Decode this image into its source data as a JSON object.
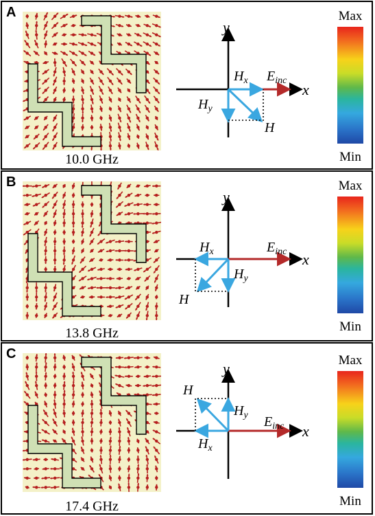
{
  "panels": [
    {
      "letter": "A",
      "frequency": "10.0 GHz",
      "colorbar": {
        "max": "Max",
        "min": "Min"
      },
      "axes": {
        "x": "x",
        "y": "y"
      },
      "vectors": {
        "Hx": "H",
        "Hx_sub": "x",
        "Hy": "H",
        "Hy_sub": "y",
        "H": "H",
        "E": "E",
        "E_sub": "inc"
      }
    },
    {
      "letter": "B",
      "frequency": "13.8 GHz",
      "colorbar": {
        "max": "Max",
        "min": "Min"
      },
      "axes": {
        "x": "x",
        "y": "y"
      },
      "vectors": {
        "Hx": "H",
        "Hx_sub": "x",
        "Hy": "H",
        "Hy_sub": "y",
        "H": "H",
        "E": "E",
        "E_sub": "inc"
      }
    },
    {
      "letter": "C",
      "frequency": "17.4 GHz",
      "colorbar": {
        "max": "Max",
        "min": "Min"
      },
      "axes": {
        "x": "x",
        "y": "y"
      },
      "vectors": {
        "Hx": "H",
        "Hx_sub": "x",
        "Hy": "H",
        "Hy_sub": "y",
        "H": "H",
        "E": "E",
        "E_sub": "inc"
      }
    }
  ],
  "colors": {
    "field_background": "#f4f1c8",
    "field_arrow": "#b51e1e",
    "z_shape_fill": "#cfe0b4",
    "vector_blue": "#3aa7e0",
    "e_inc_red": "#b42a2a"
  }
}
